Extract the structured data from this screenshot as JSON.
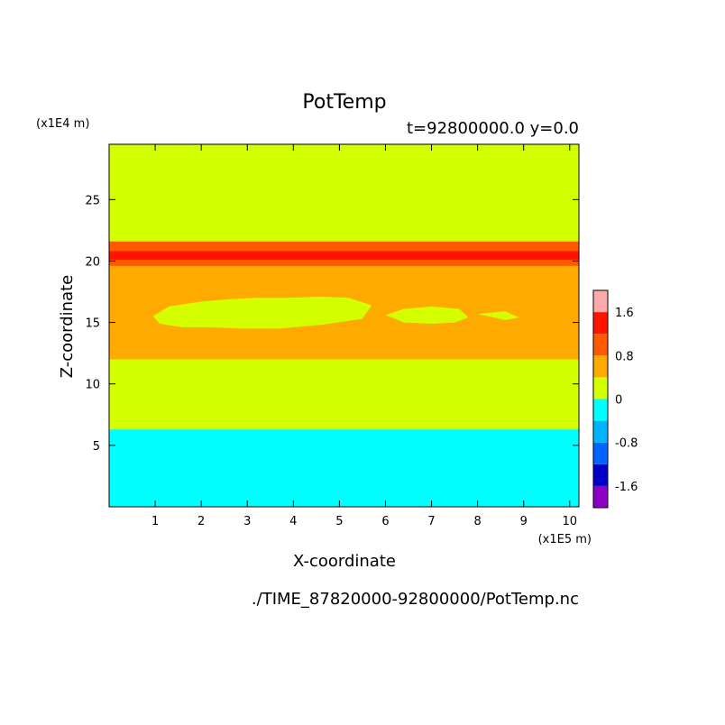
{
  "chart_data": {
    "type": "heatmap",
    "title": "PotTemp",
    "subtitle": "t=92800000.0 y=0.0",
    "xlabel": "X-coordinate",
    "ylabel": "Z-coordinate",
    "x_unit": "(x1E5 m)",
    "y_unit": "(x1E4 m)",
    "source": "./TIME_87820000-92800000/PotTemp.nc",
    "xlim": [
      0,
      10.2
    ],
    "ylim": [
      0,
      29.5
    ],
    "x_ticks": [
      1,
      2,
      3,
      4,
      5,
      6,
      7,
      8,
      9,
      10
    ],
    "y_ticks": [
      5,
      10,
      15,
      20,
      25
    ],
    "colorbar": {
      "range": [
        -2,
        2
      ],
      "levels": [
        -2,
        -1.6,
        -1.2,
        -0.8,
        -0.4,
        0,
        0.4,
        0.8,
        1.2,
        1.6,
        2
      ],
      "colors": [
        "#8c00c8",
        "#0000c8",
        "#0064ff",
        "#00b4ff",
        "#00ffff",
        "#d4ff00",
        "#ffaa00",
        "#ff5a00",
        "#ff1400",
        "#ffaaaa"
      ],
      "tick_labels": [
        {
          "value": -1.6,
          "label": "-1.6"
        },
        {
          "value": -0.8,
          "label": "-0.8"
        },
        {
          "value": 0,
          "label": "0"
        },
        {
          "value": 0.8,
          "label": "0.8"
        },
        {
          "value": 1.6,
          "label": "1.6"
        }
      ]
    },
    "background_level": 0.2,
    "bands": [
      {
        "value": -0.2,
        "z_bottom": 0,
        "z_top": 6.3
      },
      {
        "value": 0.2,
        "z_bottom": 6.3,
        "z_top": 12.0
      },
      {
        "value": 0.6,
        "z_bottom": 12.0,
        "z_top": 19.6
      },
      {
        "value": 1.0,
        "z_bottom": 19.6,
        "z_top": 21.6
      },
      {
        "value": 1.4,
        "z_bottom": 20.1,
        "z_top": 20.8
      },
      {
        "value": 0.2,
        "z_bottom": 21.6,
        "z_top": 29.5
      }
    ],
    "patches": [
      {
        "value": 0.2,
        "x": [
          0.95,
          1.3,
          2.0,
          2.6,
          3.2,
          3.9,
          4.6,
          5.2,
          5.7,
          5.5,
          4.6,
          3.7,
          2.9,
          2.2,
          1.6,
          1.1,
          0.95
        ],
        "z": [
          15.5,
          16.3,
          16.7,
          16.9,
          17.0,
          17.0,
          17.1,
          17.0,
          16.4,
          15.3,
          14.8,
          14.5,
          14.5,
          14.6,
          14.6,
          14.9,
          15.5
        ]
      },
      {
        "value": 0.2,
        "x": [
          6.0,
          6.4,
          7.0,
          7.6,
          7.8,
          7.5,
          7.0,
          6.4,
          6.0
        ],
        "z": [
          15.6,
          16.1,
          16.3,
          16.1,
          15.4,
          15.0,
          14.9,
          15.0,
          15.6
        ]
      },
      {
        "value": 0.2,
        "x": [
          8.0,
          8.6,
          8.9,
          8.6,
          8.0
        ],
        "z": [
          15.7,
          15.9,
          15.4,
          15.2,
          15.7
        ]
      }
    ]
  }
}
